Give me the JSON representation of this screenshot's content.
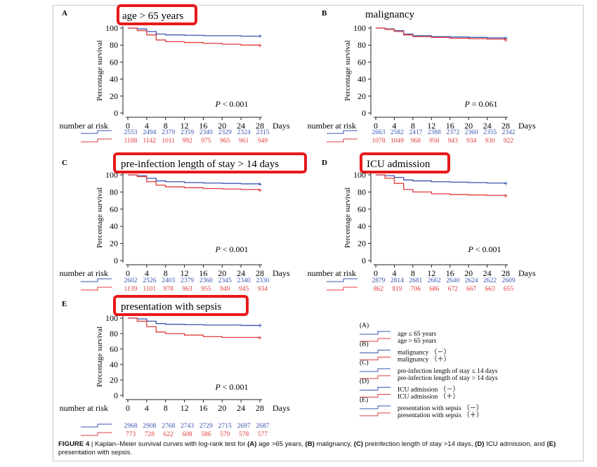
{
  "chart_data": [
    {
      "type": "line",
      "panel": "A",
      "title": "age > 65 years",
      "ylabel": "Percentage survival",
      "xlabel": "Days",
      "x_ticks": [
        0,
        4,
        8,
        12,
        16,
        20,
        24,
        28
      ],
      "y_ticks": [
        0,
        20,
        40,
        60,
        80,
        100
      ],
      "ylim": [
        0,
        100
      ],
      "p_value": "P < 0.001",
      "risk_label": "number at risk",
      "series": [
        {
          "color": "#3b56b0",
          "x": [
            0,
            2,
            4,
            6,
            8,
            12,
            16,
            20,
            24,
            28
          ],
          "values": [
            100,
            99,
            96,
            93,
            92,
            91.5,
            91,
            91,
            90.5,
            90.5
          ],
          "at_risk": [
            "2553",
            "2494",
            "2379",
            "2359",
            "2340",
            "2329",
            "2324",
            "2315"
          ]
        },
        {
          "color": "#e03c3c",
          "x": [
            0,
            2,
            4,
            6,
            8,
            12,
            16,
            20,
            24,
            28
          ],
          "values": [
            100,
            97,
            92,
            86,
            84,
            83,
            82,
            81,
            80,
            79.5
          ],
          "at_risk": [
            "1188",
            "1142",
            "1011",
            "992",
            "975",
            "965",
            "961",
            "949"
          ]
        }
      ]
    },
    {
      "type": "line",
      "panel": "B",
      "title": "malignancy",
      "ylabel": "Percentage survival",
      "xlabel": "Days",
      "x_ticks": [
        0,
        4,
        8,
        12,
        16,
        20,
        24,
        28
      ],
      "y_ticks": [
        0,
        20,
        40,
        60,
        80,
        100
      ],
      "ylim": [
        0,
        100
      ],
      "p_value": "P = 0.061",
      "risk_label": "number at risk",
      "series": [
        {
          "color": "#3b56b0",
          "x": [
            0,
            2,
            4,
            6,
            8,
            12,
            16,
            20,
            24,
            28
          ],
          "values": [
            100,
            99,
            97,
            93,
            91,
            90,
            89.5,
            89,
            88.5,
            88
          ]
        },
        {
          "color": "#e03c3c",
          "x": [
            0,
            2,
            4,
            6,
            8,
            12,
            16,
            20,
            24,
            28
          ],
          "values": [
            100,
            98.5,
            96,
            92,
            90,
            89,
            88,
            87.5,
            87,
            86
          ]
        }
      ],
      "at_risk": [
        [
          "2663",
          "2582",
          "2417",
          "2388",
          "2372",
          "2360",
          "2355",
          "2342"
        ],
        [
          "1078",
          "1049",
          "968",
          "958",
          "943",
          "934",
          "930",
          "922"
        ]
      ]
    },
    {
      "type": "line",
      "panel": "C",
      "title": "pre-infection length of stay > 14 days",
      "ylabel": "Percentage survival",
      "xlabel": "Days",
      "x_ticks": [
        0,
        4,
        8,
        12,
        16,
        20,
        24,
        28
      ],
      "y_ticks": [
        0,
        20,
        40,
        60,
        80,
        100
      ],
      "ylim": [
        0,
        100
      ],
      "p_value": "P < 0.001",
      "risk_label": "number at risk",
      "series": [
        {
          "color": "#3b56b0",
          "x": [
            0,
            2,
            4,
            6,
            8,
            12,
            16,
            20,
            24,
            28
          ],
          "values": [
            100,
            99,
            96,
            93,
            92,
            91,
            90.5,
            90,
            89.5,
            89
          ]
        },
        {
          "color": "#e03c3c",
          "x": [
            0,
            2,
            4,
            6,
            8,
            12,
            16,
            20,
            24,
            28
          ],
          "values": [
            100,
            98,
            92,
            88,
            86,
            85,
            84,
            83.5,
            83,
            82
          ]
        }
      ],
      "at_risk": [
        [
          "2602",
          "2526",
          "2403",
          "2379",
          "2360",
          "2345",
          "2340",
          "2330"
        ],
        [
          "1139",
          "1101",
          "978",
          "963",
          "955",
          "949",
          "945",
          "934"
        ]
      ]
    },
    {
      "type": "line",
      "panel": "D",
      "title": "ICU admission",
      "ylabel": "Percentage survival",
      "xlabel": "Days",
      "x_ticks": [
        0,
        4,
        8,
        12,
        16,
        20,
        24,
        28
      ],
      "y_ticks": [
        0,
        20,
        40,
        60,
        80,
        100
      ],
      "ylim": [
        0,
        100
      ],
      "p_value": "P < 0.001",
      "risk_label": "number at risk",
      "series": [
        {
          "color": "#3b56b0",
          "x": [
            0,
            2,
            4,
            6,
            8,
            12,
            16,
            20,
            24,
            28
          ],
          "values": [
            100,
            99,
            97,
            94,
            93,
            92,
            91.5,
            91,
            90.5,
            90
          ]
        },
        {
          "color": "#e03c3c",
          "x": [
            0,
            2,
            4,
            6,
            8,
            12,
            16,
            20,
            24,
            28
          ],
          "values": [
            100,
            96,
            90,
            83,
            80,
            78,
            77,
            76.5,
            76,
            75.5
          ]
        }
      ],
      "at_risk": [
        [
          "2879",
          "2814",
          "2681",
          "2662",
          "2640",
          "2624",
          "2622",
          "2609"
        ],
        [
          "862",
          "819",
          "706",
          "686",
          "672",
          "667",
          "663",
          "655"
        ]
      ]
    },
    {
      "type": "line",
      "panel": "E",
      "title": "presentation with sepsis",
      "ylabel": "Percentage survival",
      "xlabel": "Days",
      "x_ticks": [
        0,
        4,
        8,
        12,
        16,
        20,
        24,
        28
      ],
      "y_ticks": [
        0,
        20,
        40,
        60,
        80,
        100
      ],
      "ylim": [
        0,
        100
      ],
      "p_value": "P < 0.001",
      "risk_label": "number at risk",
      "series": [
        {
          "color": "#3b56b0",
          "x": [
            0,
            2,
            4,
            6,
            8,
            12,
            16,
            20,
            24,
            28
          ],
          "values": [
            100,
            99,
            96,
            93,
            92,
            91.5,
            91,
            91,
            90.5,
            90.5
          ]
        },
        {
          "color": "#e03c3c",
          "x": [
            0,
            2,
            4,
            6,
            8,
            12,
            16,
            20,
            24,
            28
          ],
          "values": [
            100,
            96,
            89,
            82,
            80,
            78,
            76,
            75,
            75,
            74.5
          ]
        }
      ],
      "at_risk": [
        [
          "2968",
          "2908",
          "2768",
          "2743",
          "2729",
          "2715",
          "2697",
          "2687"
        ],
        [
          "773",
          "728",
          "622",
          "608",
          "586",
          "579",
          "578",
          "577"
        ]
      ]
    }
  ],
  "legend": [
    {
      "tag": "(A)",
      "items": [
        "age ≤ 65 years",
        "age > 65 years"
      ]
    },
    {
      "tag": "(B)",
      "items": [
        "malignancy （－）",
        "malignancy （＋）"
      ]
    },
    {
      "tag": "(C)",
      "items": [
        "pre-infection length of stay ≤ 14 days",
        "pre-infection length of stay > 14 days"
      ]
    },
    {
      "tag": "(D)",
      "items": [
        "ICU admission （－）",
        "ICU admission （＋）"
      ]
    },
    {
      "tag": "(E)",
      "items": [
        "presentation with sepsis （－）",
        "presentation with sepsis （＋）"
      ]
    }
  ],
  "caption": {
    "label": "FIGURE 4",
    "text": " | Kaplan–Meier survival curves with log-rank test for ",
    "parts": [
      "(A)",
      " age >65 years, ",
      "(B)",
      " malignancy, ",
      "(C)",
      " preinfection length of stay >14 days, ",
      "(D)",
      " ICU admission, and ",
      "(E)",
      " presentation with sepsis."
    ]
  },
  "colors": {
    "blue": "#3b56b0",
    "red": "#e03c3c",
    "highlight": "#e8191a"
  }
}
